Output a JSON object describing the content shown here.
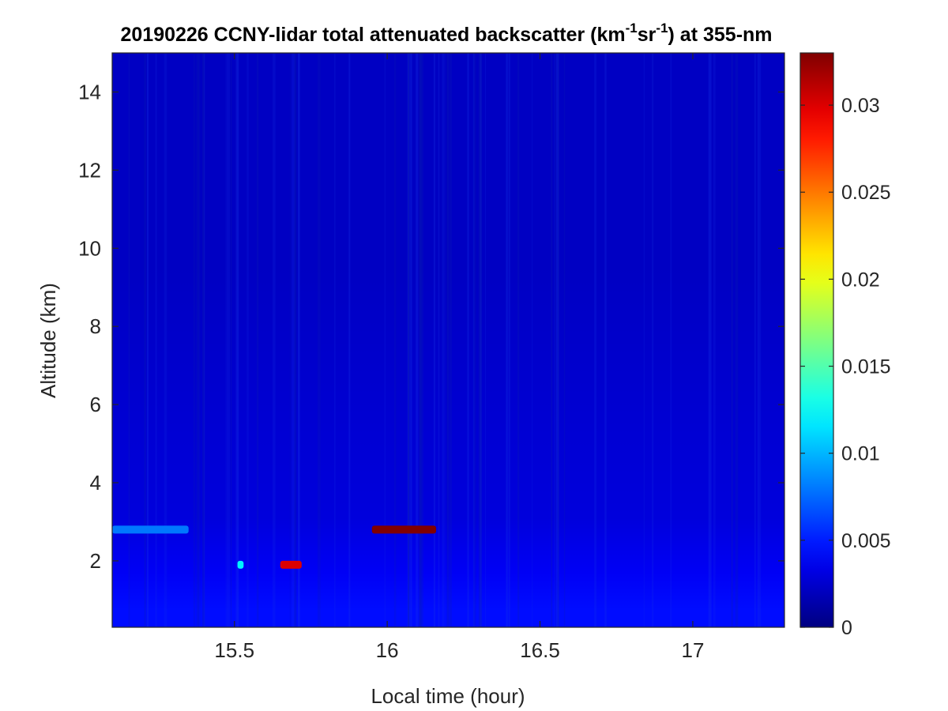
{
  "chart_data": {
    "type": "heatmap",
    "title": {
      "prefix": "20190226 CCNY-lidar total attenuated backscatter (km",
      "sup1": "-1",
      "mid": "sr",
      "sup2": "-1",
      "suffix": ") at 355-nm"
    },
    "xlabel": "Local time (hour)",
    "ylabel": "Altitude (km)",
    "xlim": [
      15.1,
      17.3
    ],
    "ylim": [
      0.3,
      15
    ],
    "xticks": [
      {
        "value": 15.5,
        "label": "15.5"
      },
      {
        "value": 16,
        "label": "16"
      },
      {
        "value": 16.5,
        "label": "16.5"
      },
      {
        "value": 17,
        "label": "17"
      }
    ],
    "yticks": [
      {
        "value": 2,
        "label": "2"
      },
      {
        "value": 4,
        "label": "4"
      },
      {
        "value": 6,
        "label": "6"
      },
      {
        "value": 8,
        "label": "8"
      },
      {
        "value": 10,
        "label": "10"
      },
      {
        "value": 12,
        "label": "12"
      },
      {
        "value": 14,
        "label": "14"
      }
    ],
    "colormap": "jet",
    "colorbar": {
      "clim": [
        0,
        0.033
      ],
      "ticks": [
        {
          "value": 0,
          "label": "0"
        },
        {
          "value": 0.005,
          "label": "0.005"
        },
        {
          "value": 0.01,
          "label": "0.01"
        },
        {
          "value": 0.015,
          "label": "0.015"
        },
        {
          "value": 0.02,
          "label": "0.02"
        },
        {
          "value": 0.025,
          "label": "0.025"
        },
        {
          "value": 0.03,
          "label": "0.03"
        }
      ]
    },
    "background_levels": [
      {
        "altitude_range": [
          0.3,
          1.2
        ],
        "value": 0.0045
      },
      {
        "altitude_range": [
          1.2,
          2.2
        ],
        "value": 0.0038
      },
      {
        "altitude_range": [
          2.2,
          4.0
        ],
        "value": 0.003
      },
      {
        "altitude_range": [
          4.0,
          15.0
        ],
        "value": 0.0022
      }
    ],
    "features": [
      {
        "name": "",
        "time_range": [
          15.1,
          15.35
        ],
        "altitude": 2.8,
        "value": 0.008
      },
      {
        "name": "",
        "time_range": [
          15.95,
          16.16
        ],
        "altitude": 2.8,
        "value": 0.033
      },
      {
        "name": "",
        "time_range": [
          15.51,
          15.53
        ],
        "altitude": 1.9,
        "value": 0.012
      },
      {
        "name": "",
        "time_range": [
          15.65,
          15.72
        ],
        "altitude": 1.9,
        "value": 0.03
      }
    ]
  }
}
